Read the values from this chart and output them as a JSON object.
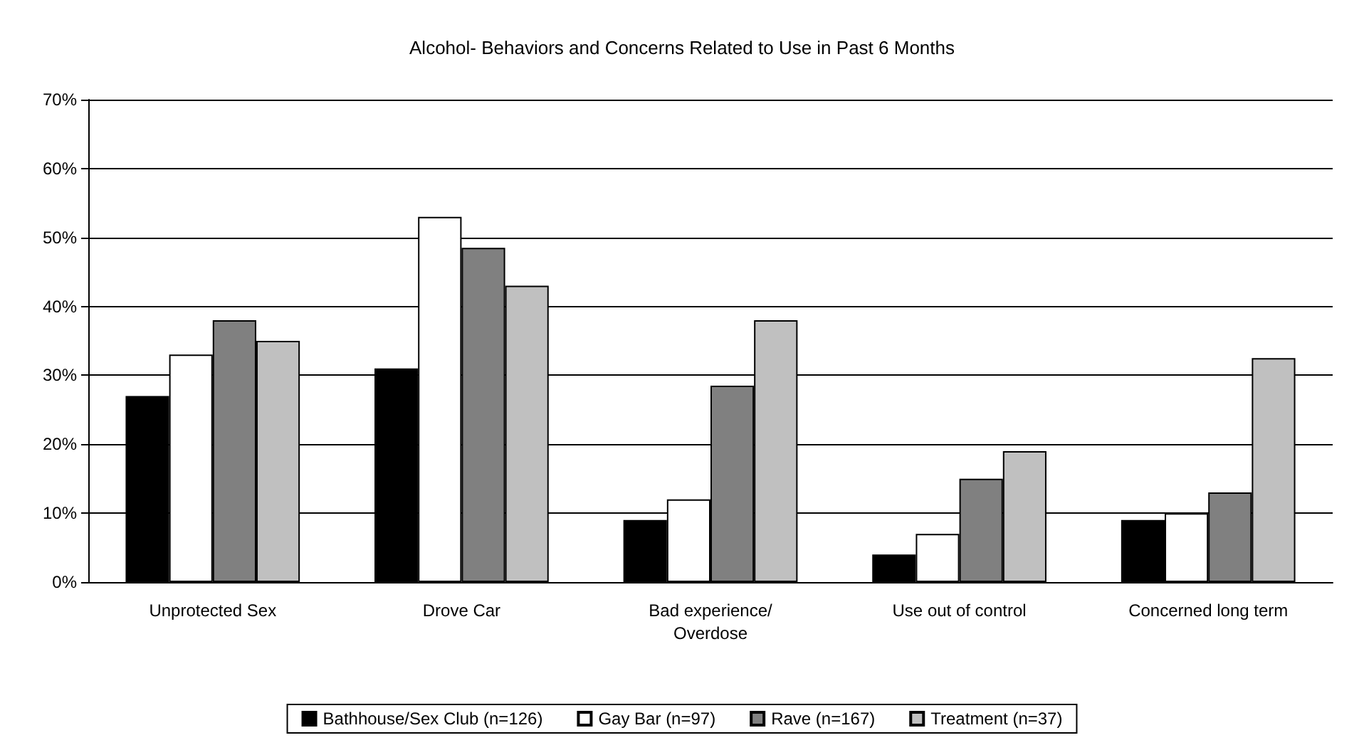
{
  "chart_data": {
    "type": "bar",
    "title": "Alcohol- Behaviors and Concerns Related to Use in Past 6 Months",
    "categories": [
      "Unprotected Sex",
      "Drove Car",
      "Bad experience/\nOverdose",
      "Use out of control",
      "Concerned long term"
    ],
    "series": [
      {
        "name": "Bathhouse/Sex Club (n=126)",
        "color": "#000000",
        "values": [
          27,
          31,
          9,
          4,
          9
        ]
      },
      {
        "name": "Gay Bar (n=97)",
        "color": "#ffffff",
        "values": [
          33,
          53,
          12,
          7,
          10
        ]
      },
      {
        "name": "Rave (n=167)",
        "color": "#808080",
        "values": [
          38,
          48.5,
          28.5,
          15,
          13
        ]
      },
      {
        "name": "Treatment (n=37)",
        "color": "#c0c0c0",
        "values": [
          35,
          43,
          38,
          19,
          32.5
        ]
      }
    ],
    "ylim": [
      0,
      70
    ],
    "yticks": [
      {
        "value": 0,
        "label": "0%"
      },
      {
        "value": 10,
        "label": "10%"
      },
      {
        "value": 20,
        "label": "20%"
      },
      {
        "value": 30,
        "label": "30%"
      },
      {
        "value": 40,
        "label": "40%"
      },
      {
        "value": 50,
        "label": "50%"
      },
      {
        "value": 60,
        "label": "60%"
      },
      {
        "value": 70,
        "label": "70%"
      }
    ],
    "grid": "y",
    "legend": "bottom"
  }
}
